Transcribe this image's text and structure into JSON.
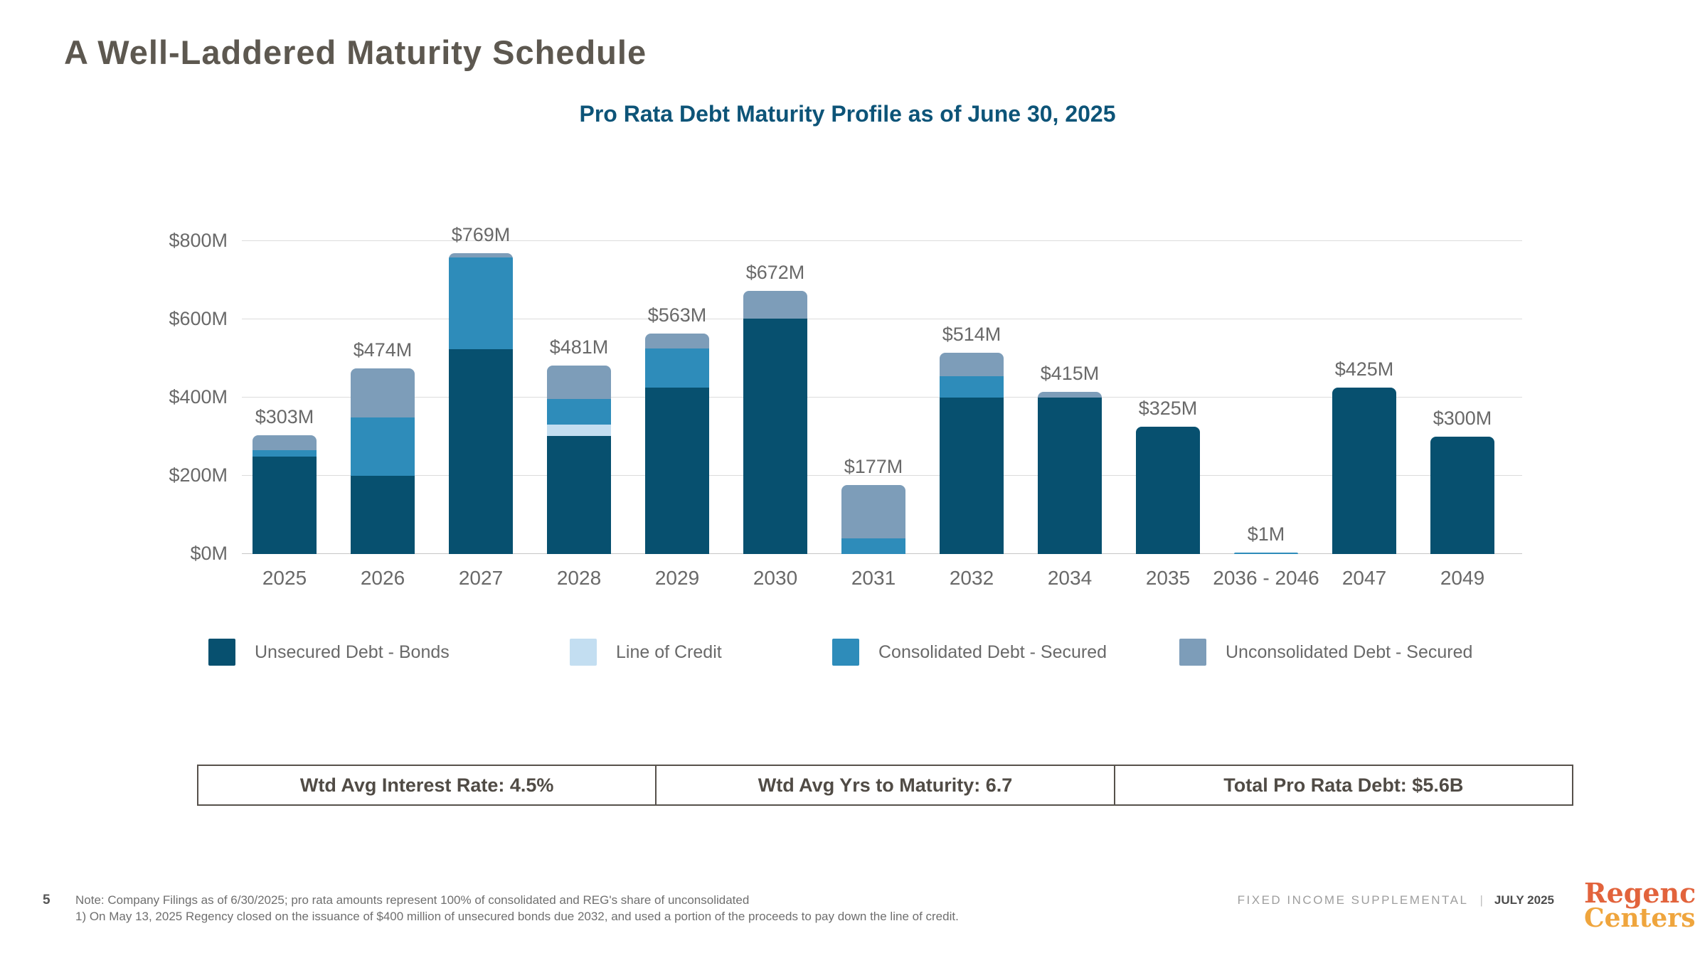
{
  "page": {
    "title": "A Well-Laddered Maturity Schedule",
    "page_number": "5",
    "footnote_line1": "Note: Company Filings as of 6/30/2025; pro rata amounts represent 100% of consolidated and REG's share of unconsolidated",
    "footnote_line2": "1) On May 13, 2025 Regency closed on the issuance of $400 million of unsecured bonds due 2032, and used a portion of the proceeds to pay down the line of credit.",
    "footer_right": {
      "doc_label": "FIXED INCOME SUPPLEMENTAL",
      "separator": "|",
      "date_label": "JULY 2025"
    },
    "logo": {
      "line1": "Regency",
      "registered_mark": "®",
      "line2": "Centers."
    }
  },
  "chart_data": {
    "type": "bar",
    "stacked": true,
    "title": "Pro Rata Debt Maturity Profile as of June 30, 2025",
    "xlabel": "",
    "ylabel": "",
    "ylim": [
      0,
      800
    ],
    "yticks": [
      "$0M",
      "$200M",
      "$400M",
      "$600M",
      "$800M"
    ],
    "grid": true,
    "legend_position": "bottom",
    "categories": [
      "2025",
      "2026",
      "2027",
      "2028",
      "2029",
      "2030",
      "2031",
      "2032",
      "2034",
      "2035",
      "2036 - 2046",
      "2047",
      "2049"
    ],
    "total_labels": [
      "$303M",
      "$474M",
      "$769M",
      "$481M",
      "$563M",
      "$672M",
      "$177M",
      "$514M",
      "$415M",
      "$325M",
      "$1M",
      "$425M",
      "$300M"
    ],
    "totals_millions": [
      303,
      474,
      769,
      481,
      563,
      672,
      177,
      514,
      415,
      325,
      1,
      425,
      300
    ],
    "series": [
      {
        "name": "Unsecured Debt - Bonds",
        "color": "#07506f",
        "values": [
          250,
          200,
          524,
          302,
          426,
          601,
          0,
          400,
          400,
          325,
          0,
          425,
          300
        ]
      },
      {
        "name": "Line of Credit",
        "color": "#c3def1",
        "values": [
          0,
          0,
          0,
          29,
          0,
          0,
          0,
          0,
          0,
          0,
          0,
          0,
          0
        ]
      },
      {
        "name": "Consolidated Debt - Secured",
        "color": "#2e8cba",
        "values": [
          16,
          150,
          234,
          66,
          100,
          0,
          40,
          55,
          0,
          0,
          1,
          0,
          0
        ]
      },
      {
        "name": "Unconsolidated Debt - Secured",
        "color": "#7d9db9",
        "values": [
          37,
          124,
          11,
          84,
          37,
          71,
          137,
          59,
          15,
          0,
          0,
          0,
          0
        ]
      }
    ]
  },
  "summary_table": {
    "cells": [
      "Wtd Avg Interest Rate: 4.5%",
      "Wtd Avg Yrs to Maturity: 6.7",
      "Total Pro Rata Debt: $5.6B"
    ]
  }
}
